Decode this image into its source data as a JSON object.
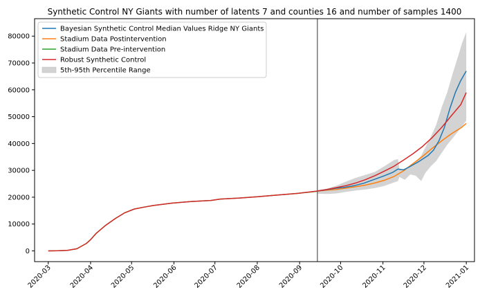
{
  "chart_data": {
    "type": "line",
    "title": "Synthetic Control NY Giants with number of latents 7 and counties 16 and number of samples 1400",
    "xlabel": "",
    "ylabel": "",
    "xlim": [
      "2020-02-20",
      "2021-01-07"
    ],
    "ylim": [
      -4000,
      86500
    ],
    "x_ticks": [
      "2020-03",
      "2020-04",
      "2020-05",
      "2020-06",
      "2020-07",
      "2020-08",
      "2020-09",
      "2020-10",
      "2020-11",
      "2020-12",
      "2021-01"
    ],
    "y_ticks": [
      0,
      10000,
      20000,
      30000,
      40000,
      50000,
      60000,
      70000,
      80000
    ],
    "y_tick_labels": [
      "0",
      "10000",
      "20000",
      "30000",
      "40000",
      "50000",
      "60000",
      "70000",
      "80000"
    ],
    "intervention_date": "2020-09-14",
    "grid": false,
    "legend_position": "upper left",
    "series": [
      {
        "name": "Bayesian Synthetic Control Median Values Ridge NY Giants",
        "color": "#1f77b4",
        "points": [
          [
            "2020-09-14",
            22300
          ],
          [
            "2020-09-20",
            22700
          ],
          [
            "2020-09-27",
            23300
          ],
          [
            "2020-10-04",
            23700
          ],
          [
            "2020-10-11",
            24300
          ],
          [
            "2020-10-18",
            25200
          ],
          [
            "2020-10-25",
            26500
          ],
          [
            "2020-11-01",
            27800
          ],
          [
            "2020-11-08",
            29200
          ],
          [
            "2020-11-12",
            30500
          ],
          [
            "2020-11-16",
            30200
          ],
          [
            "2020-11-20",
            31200
          ],
          [
            "2020-11-27",
            33200
          ],
          [
            "2020-12-04",
            35500
          ],
          [
            "2020-12-08",
            37500
          ],
          [
            "2020-12-12",
            41000
          ],
          [
            "2020-12-16",
            46000
          ],
          [
            "2020-12-20",
            53000
          ],
          [
            "2020-12-24",
            59000
          ],
          [
            "2020-12-28",
            63500
          ],
          [
            "2021-01-01",
            67000
          ]
        ]
      },
      {
        "name": "Stadium Data Postintervention",
        "color": "#ff7f0e",
        "points": [
          [
            "2020-09-14",
            22300
          ],
          [
            "2020-09-21",
            22600
          ],
          [
            "2020-09-28",
            22900
          ],
          [
            "2020-10-05",
            23400
          ],
          [
            "2020-10-12",
            23900
          ],
          [
            "2020-10-19",
            24500
          ],
          [
            "2020-10-26",
            25300
          ],
          [
            "2020-11-02",
            26300
          ],
          [
            "2020-11-09",
            27700
          ],
          [
            "2020-11-16",
            29800
          ],
          [
            "2020-11-23",
            32500
          ],
          [
            "2020-11-30",
            35200
          ],
          [
            "2020-12-07",
            38200
          ],
          [
            "2020-12-14",
            41000
          ],
          [
            "2020-12-21",
            43600
          ],
          [
            "2020-12-28",
            45800
          ],
          [
            "2021-01-01",
            47500
          ]
        ]
      },
      {
        "name": "Stadium Data Pre-intervention",
        "color": "#2ca02c",
        "points": [
          [
            "2020-03-01",
            0
          ],
          [
            "2020-03-08",
            50
          ],
          [
            "2020-03-15",
            200
          ],
          [
            "2020-03-22",
            800
          ],
          [
            "2020-03-29",
            2800
          ],
          [
            "2020-04-01",
            4200
          ],
          [
            "2020-04-05",
            6500
          ],
          [
            "2020-04-12",
            9500
          ],
          [
            "2020-04-19",
            12000
          ],
          [
            "2020-04-26",
            14200
          ],
          [
            "2020-05-03",
            15600
          ],
          [
            "2020-05-10",
            16300
          ],
          [
            "2020-05-17",
            16900
          ],
          [
            "2020-05-31",
            17800
          ],
          [
            "2020-06-14",
            18400
          ],
          [
            "2020-06-28",
            18800
          ],
          [
            "2020-07-05",
            19300
          ],
          [
            "2020-07-19",
            19700
          ],
          [
            "2020-08-02",
            20200
          ],
          [
            "2020-08-16",
            20800
          ],
          [
            "2020-08-30",
            21400
          ],
          [
            "2020-09-14",
            22200
          ]
        ]
      },
      {
        "name": "Robust Synthetic Control",
        "color": "#d62728",
        "points": [
          [
            "2020-03-01",
            0
          ],
          [
            "2020-03-08",
            50
          ],
          [
            "2020-03-15",
            200
          ],
          [
            "2020-03-22",
            800
          ],
          [
            "2020-03-29",
            2800
          ],
          [
            "2020-04-01",
            4200
          ],
          [
            "2020-04-05",
            6500
          ],
          [
            "2020-04-12",
            9500
          ],
          [
            "2020-04-19",
            12000
          ],
          [
            "2020-04-26",
            14200
          ],
          [
            "2020-05-03",
            15600
          ],
          [
            "2020-05-10",
            16300
          ],
          [
            "2020-05-17",
            16900
          ],
          [
            "2020-05-31",
            17800
          ],
          [
            "2020-06-14",
            18400
          ],
          [
            "2020-06-28",
            18800
          ],
          [
            "2020-07-05",
            19300
          ],
          [
            "2020-07-19",
            19700
          ],
          [
            "2020-08-02",
            20200
          ],
          [
            "2020-08-16",
            20800
          ],
          [
            "2020-08-30",
            21400
          ],
          [
            "2020-09-14",
            22300
          ],
          [
            "2020-09-21",
            22900
          ],
          [
            "2020-09-28",
            23600
          ],
          [
            "2020-10-05",
            24300
          ],
          [
            "2020-10-12",
            25300
          ],
          [
            "2020-10-19",
            26500
          ],
          [
            "2020-10-26",
            28000
          ],
          [
            "2020-11-02",
            29700
          ],
          [
            "2020-11-09",
            31500
          ],
          [
            "2020-11-16",
            33800
          ],
          [
            "2020-11-23",
            36200
          ],
          [
            "2020-11-30",
            38900
          ],
          [
            "2020-12-07",
            42200
          ],
          [
            "2020-12-14",
            46000
          ],
          [
            "2020-12-21",
            50300
          ],
          [
            "2020-12-28",
            54500
          ],
          [
            "2021-01-01",
            59000
          ]
        ]
      }
    ],
    "band": {
      "name": "5th-95th Percentile Range",
      "color": "#d3d3d3",
      "points": [
        [
          "2020-09-14",
          22600,
          21300
        ],
        [
          "2020-09-21",
          23200,
          21200
        ],
        [
          "2020-09-28",
          24300,
          21400
        ],
        [
          "2020-10-05",
          25800,
          22000
        ],
        [
          "2020-10-12",
          27200,
          22500
        ],
        [
          "2020-10-19",
          28300,
          22900
        ],
        [
          "2020-10-26",
          29400,
          23400
        ],
        [
          "2020-11-02",
          31500,
          24200
        ],
        [
          "2020-11-09",
          33800,
          25500
        ],
        [
          "2020-11-12",
          34200,
          26000
        ],
        [
          "2020-11-13",
          30500,
          27500
        ],
        [
          "2020-11-17",
          30000,
          26500
        ],
        [
          "2020-11-21",
          31500,
          28500
        ],
        [
          "2020-11-25",
          33000,
          28000
        ],
        [
          "2020-11-29",
          35500,
          26000
        ],
        [
          "2020-12-02",
          38500,
          29000
        ],
        [
          "2020-12-06",
          42500,
          31500
        ],
        [
          "2020-12-10",
          47000,
          33500
        ],
        [
          "2020-12-14",
          53500,
          36500
        ],
        [
          "2020-12-18",
          59000,
          39500
        ],
        [
          "2020-12-22",
          66000,
          42000
        ],
        [
          "2020-12-26",
          72500,
          44500
        ],
        [
          "2020-12-29",
          77500,
          46500
        ],
        [
          "2021-01-01",
          81500,
          48500
        ]
      ]
    }
  }
}
